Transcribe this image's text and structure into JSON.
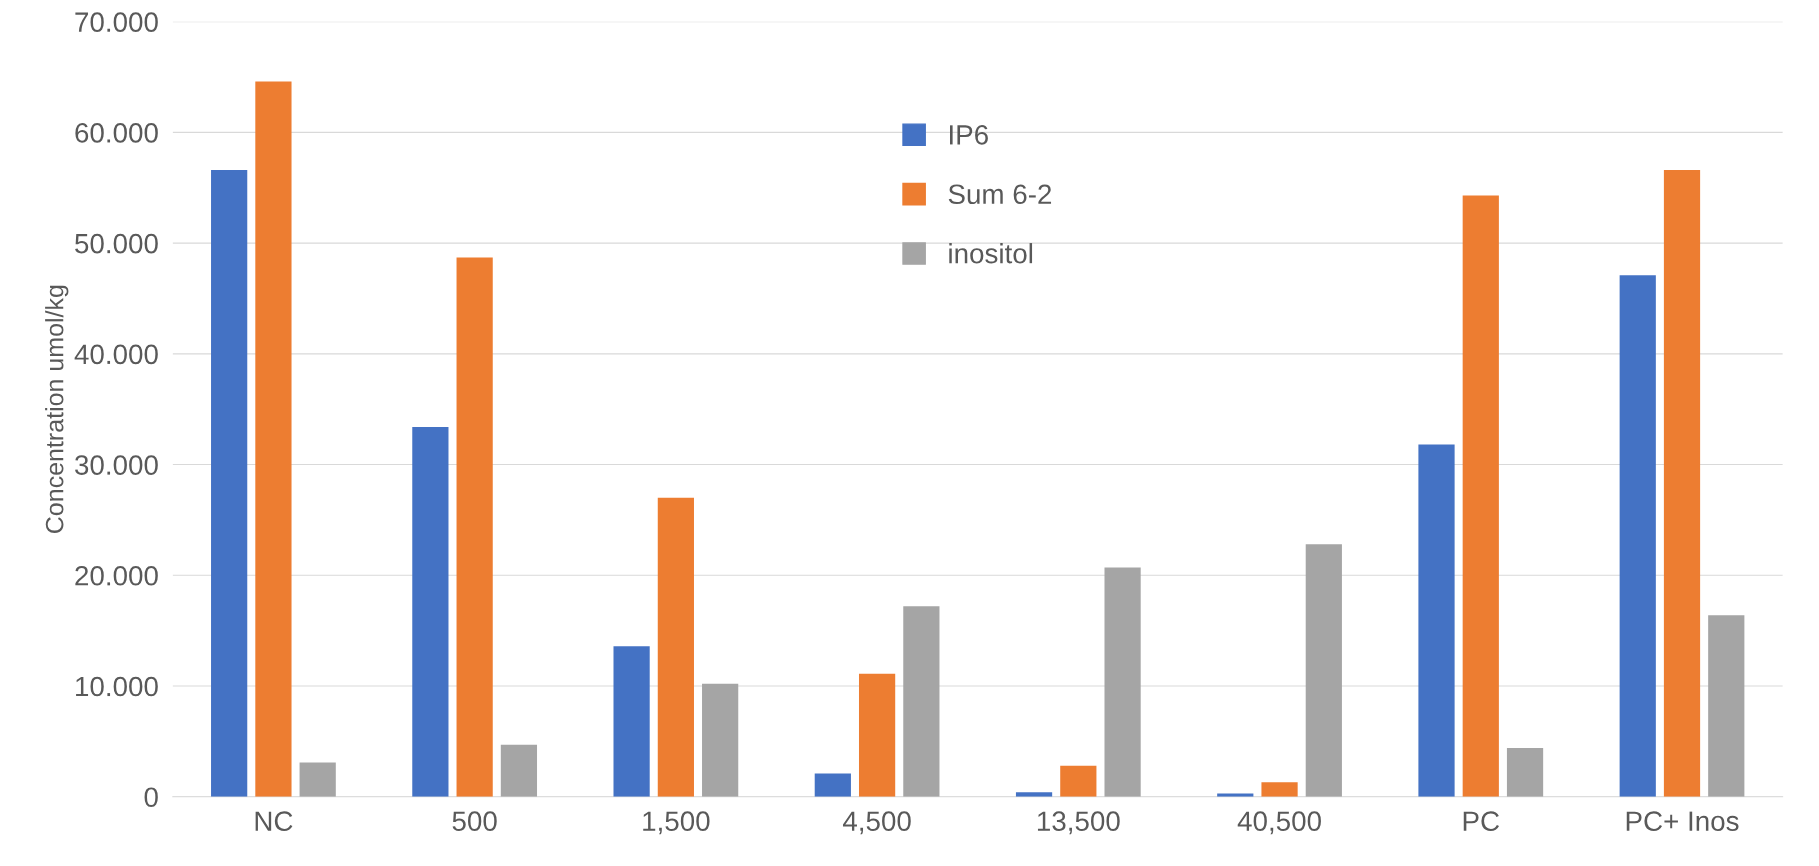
{
  "chart_data": {
    "type": "bar",
    "ylabel": "Concentration umol/kg",
    "categories": [
      "NC",
      "500",
      "1,500",
      "4,500",
      "13,500",
      "40,500",
      "PC",
      "PC+ Inos"
    ],
    "series": [
      {
        "name": "IP6",
        "color": "#4472c4",
        "values": [
          56600,
          33400,
          13600,
          2100,
          400,
          300,
          31800,
          47100
        ]
      },
      {
        "name": "Sum 6-2",
        "color": "#ed7d31",
        "values": [
          64600,
          48700,
          27000,
          11100,
          2800,
          1300,
          54300,
          56600
        ]
      },
      {
        "name": "inositol",
        "color": "#a5a5a5",
        "values": [
          3100,
          4700,
          10200,
          17200,
          20700,
          22800,
          4400,
          16400
        ]
      }
    ],
    "ylim": [
      0,
      70000
    ],
    "yticks": [
      0,
      {
        "value": 10000,
        "label": "10.000"
      },
      {
        "value": 20000,
        "label": "20.000"
      },
      {
        "value": 30000,
        "label": "30.000"
      },
      {
        "value": 40000,
        "label": "40.000"
      },
      {
        "value": 50000,
        "label": "50.000"
      },
      {
        "value": 60000,
        "label": "60.000"
      },
      {
        "value": 70000,
        "label": "70.000"
      }
    ],
    "grid": "y",
    "legend": "top"
  }
}
